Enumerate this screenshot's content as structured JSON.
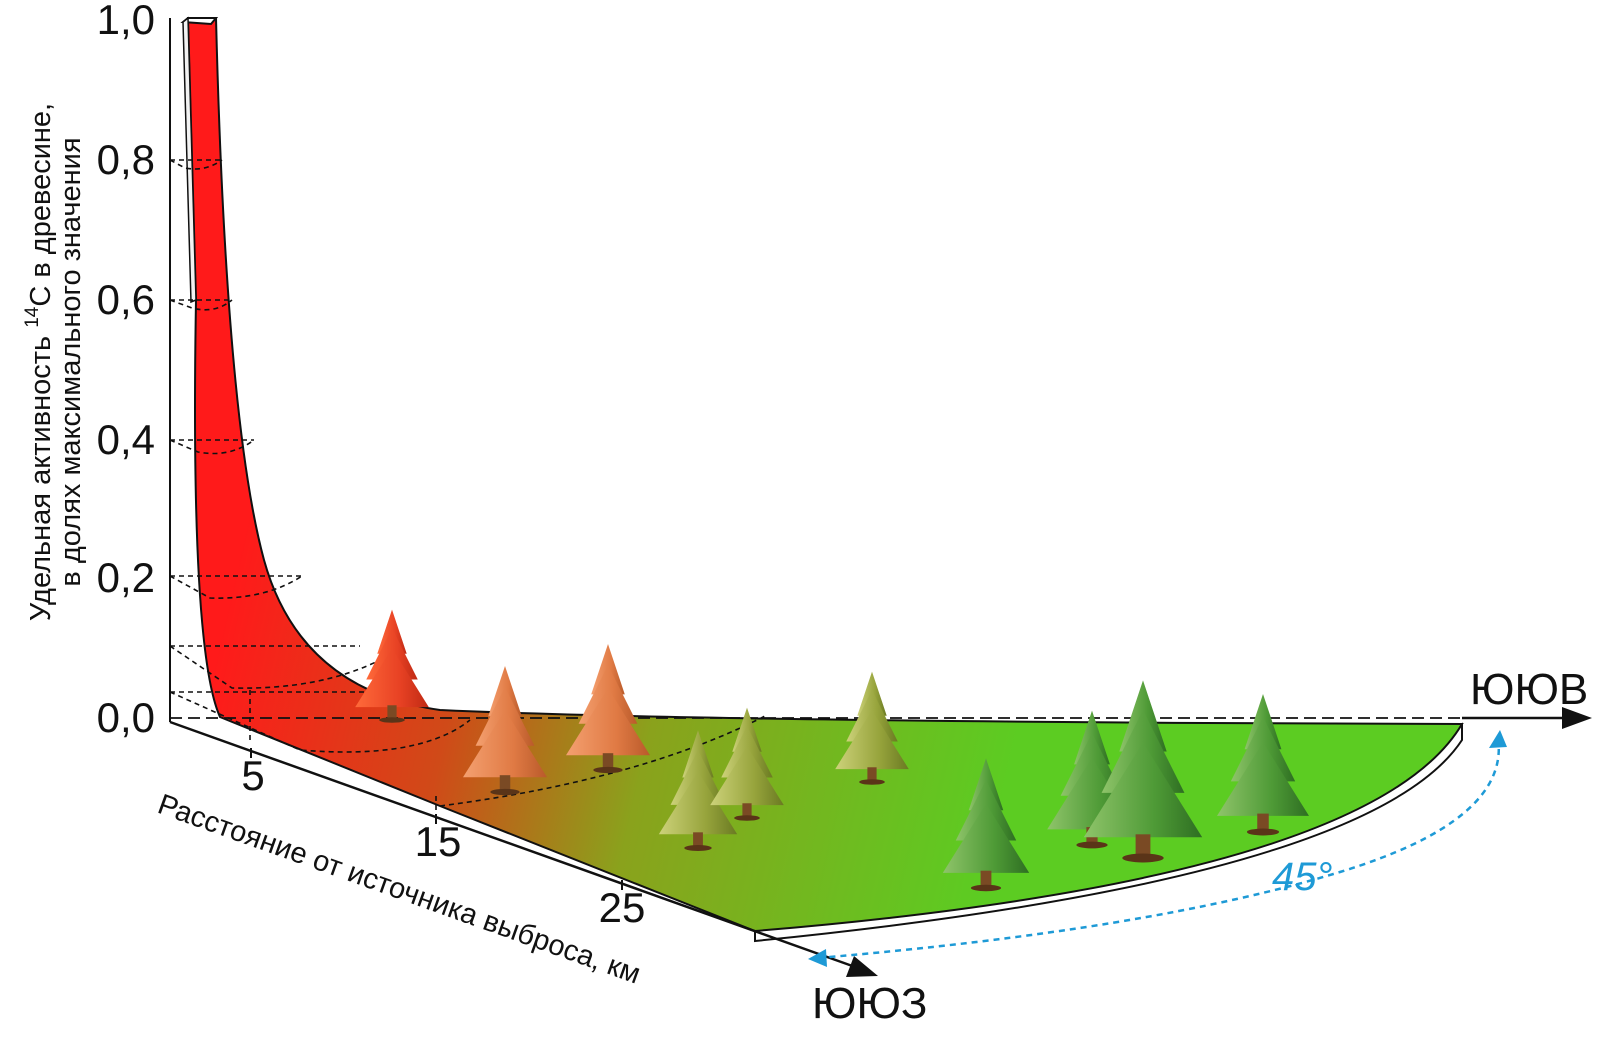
{
  "y_axis": {
    "label_line1_before_sup": "Удельная активность ",
    "label_line1_sup": "14",
    "label_line1_after_sup": "С в древесине,",
    "label_line2": "в долях максимального значения",
    "ticks": [
      "1,0",
      "0,8",
      "0,6",
      "0,4",
      "0,2",
      "0,0"
    ]
  },
  "x_axis": {
    "label": "Расстояние от источника выброса, км",
    "ticks": [
      "5",
      "15",
      "25"
    ]
  },
  "directions": {
    "ssw": "ЮЮЗ",
    "sse": "ЮЮВ"
  },
  "angle": {
    "label": "45°"
  },
  "colors": {
    "high": "#ff1a1a",
    "low": "#5ccc22",
    "angle": "#1e9ad6"
  }
}
